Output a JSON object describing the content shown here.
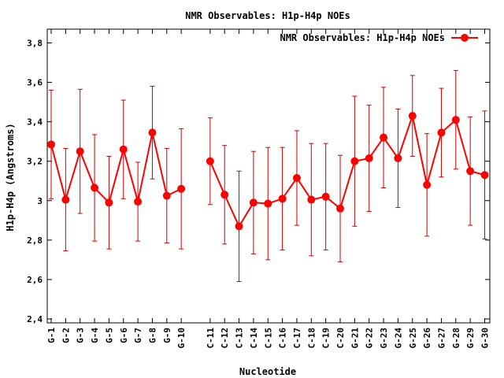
{
  "chart_data": {
    "type": "line",
    "title": "NMR Observables: H1p-H4p NOEs",
    "xlabel": "Nucleotide",
    "ylabel": "H1p-H4p (Angstroms)",
    "ylim": [
      2.38,
      3.87
    ],
    "yticks": [
      2.4,
      2.6,
      2.8,
      3,
      3.2,
      3.4,
      3.6,
      3.8
    ],
    "ytick_labels": [
      "2,4",
      "2,6",
      "2,8",
      "3",
      "3,2",
      "3,4",
      "3,6",
      "3,8"
    ],
    "legend": {
      "position": "top-right",
      "label": "NMR Observables: H1p-H4p NOEs"
    },
    "series_color": "#ff0000",
    "errorbar_color": "#cc0000",
    "groups": [
      {
        "categories": [
          "G-1",
          "G-2",
          "G-3",
          "G-4",
          "G-5",
          "G-6",
          "G-7",
          "G-8",
          "G-9",
          "G-10"
        ],
        "values": [
          3.285,
          3.005,
          3.25,
          3.065,
          2.99,
          3.26,
          2.995,
          3.345,
          3.025,
          3.06
        ],
        "errors": [
          0.275,
          0.26,
          0.315,
          0.27,
          0.235,
          0.25,
          0.2,
          0.235,
          0.24,
          0.305
        ]
      },
      {
        "categories": [
          "C-11",
          "C-12",
          "C-13",
          "C-14",
          "C-15",
          "C-16",
          "C-17",
          "C-18",
          "C-19",
          "C-20",
          "G-21",
          "G-22",
          "G-23",
          "G-24",
          "G-25",
          "G-26",
          "G-27",
          "G-28",
          "G-29",
          "G-30"
        ],
        "values": [
          3.2,
          3.03,
          2.87,
          2.99,
          2.985,
          3.01,
          3.115,
          3.005,
          3.02,
          2.96,
          3.2,
          3.215,
          3.32,
          3.215,
          3.43,
          3.08,
          3.345,
          3.41,
          3.15,
          3.13
        ],
        "errors": [
          0.22,
          0.25,
          0.28,
          0.26,
          0.285,
          0.26,
          0.24,
          0.285,
          0.27,
          0.27,
          0.33,
          0.27,
          0.255,
          0.25,
          0.205,
          0.26,
          0.225,
          0.25,
          0.275,
          0.325
        ]
      }
    ]
  }
}
